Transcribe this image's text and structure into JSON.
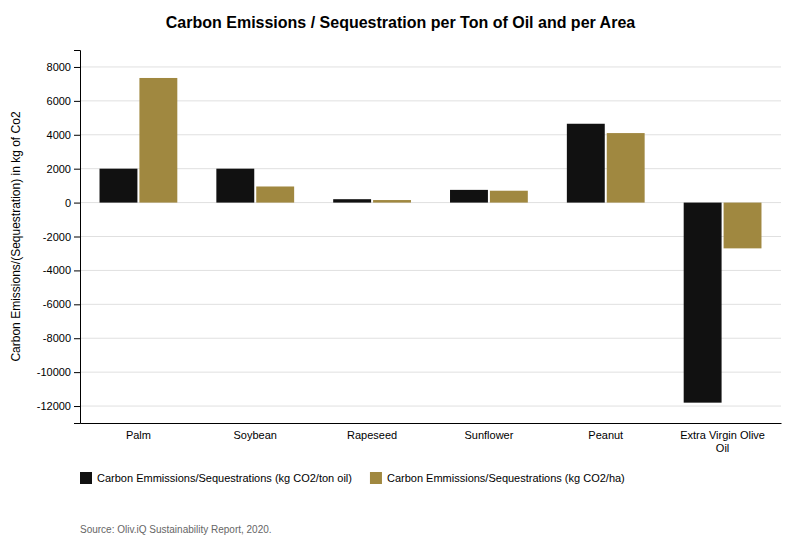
{
  "chart_data": {
    "type": "bar",
    "title": "Carbon Emissions / Sequestration per Ton of Oil and per Area",
    "ylabel": "Carbon Emissions/(Sequestration) in kg of Co2",
    "categories": [
      "Palm",
      "Soybean",
      "Rapeseed",
      "Sunflower",
      "Peanut",
      "Extra Virgin Olive\nOil"
    ],
    "series": [
      {
        "name": "Carbon Emmissions/Sequestrations (kg CO2/ton oil)",
        "color": "#111111",
        "values": [
          2000,
          2000,
          200,
          750,
          4650,
          -11800
        ]
      },
      {
        "name": "Carbon Emmissions/Sequestrations (kg CO2/ha)",
        "color": "#a08840",
        "values": [
          7350,
          950,
          150,
          700,
          4100,
          -2700
        ]
      }
    ],
    "ylim": [
      -13000,
      9000
    ],
    "yticks": [
      -12000,
      -10000,
      -8000,
      -6000,
      -4000,
      -2000,
      0,
      2000,
      4000,
      6000,
      8000
    ],
    "grid": true,
    "legend": "lower left",
    "annotations": [
      "Source: Oliv.iQ Sustainability Report, 2020."
    ]
  }
}
